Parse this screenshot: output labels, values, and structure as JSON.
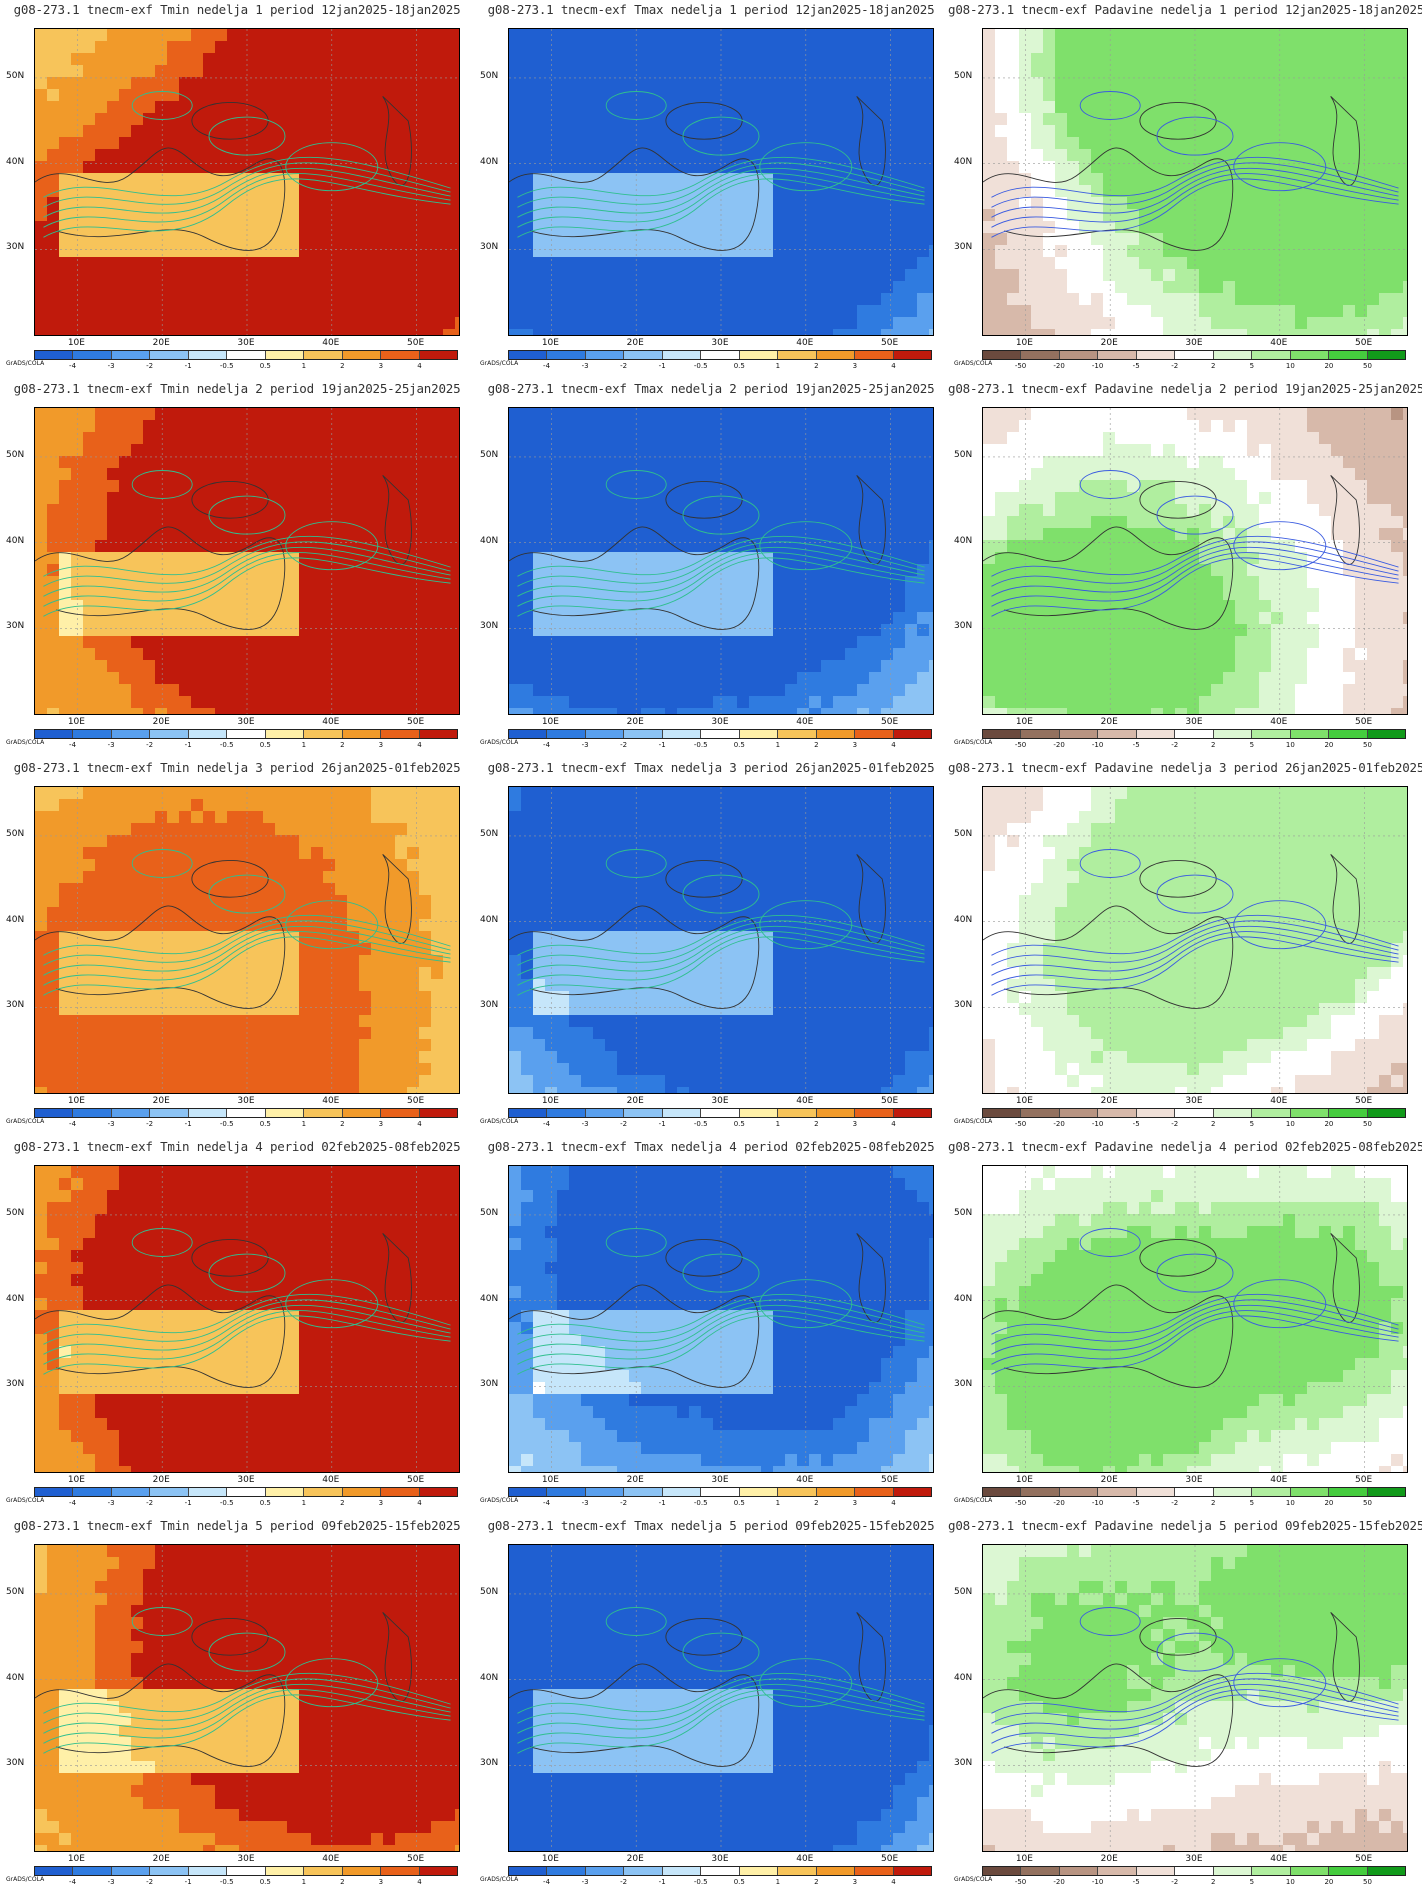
{
  "panels": [
    {
      "title": "g08-273.1 tnecm-exf Tmin nedelja 1 period 12jan2025-18jan2025",
      "type": "tmin",
      "theme": "hot"
    },
    {
      "title": "g08-273.1 tnecm-exf Tmax nedelja 1 period 12jan2025-18jan2025",
      "type": "tmax",
      "theme": "cold"
    },
    {
      "title": "g08-273.1 tnecm-exf Padavine nedelja 1 period 12jan2025-18jan2025",
      "type": "precip",
      "theme": "wet"
    },
    {
      "title": "g08-273.1 tnecm-exf Tmin nedelja 2 period 19jan2025-25jan2025",
      "type": "tmin",
      "theme": "hot"
    },
    {
      "title": "g08-273.1 tnecm-exf Tmax nedelja 2 period 19jan2025-25jan2025",
      "type": "tmax",
      "theme": "cold"
    },
    {
      "title": "g08-273.1 tnecm-exf Padavine nedelja 2 period 19jan2025-25jan2025",
      "type": "precip",
      "theme": "wet"
    },
    {
      "title": "g08-273.1 tnecm-exf Tmin nedelja 3 period 26jan2025-01feb2025",
      "type": "tmin",
      "theme": "warm"
    },
    {
      "title": "g08-273.1 tnecm-exf Tmax nedelja 3 period 26jan2025-01feb2025",
      "type": "tmax",
      "theme": "cold"
    },
    {
      "title": "g08-273.1 tnecm-exf Padavine nedelja 3 period 26jan2025-01feb2025",
      "type": "precip",
      "theme": "mixed"
    },
    {
      "title": "g08-273.1 tnecm-exf Tmin nedelja 4 period 02feb2025-08feb2025",
      "type": "tmin",
      "theme": "hot"
    },
    {
      "title": "g08-273.1 tnecm-exf Tmax nedelja 4 period 02feb2025-08feb2025",
      "type": "tmax",
      "theme": "cold"
    },
    {
      "title": "g08-273.1 tnecm-exf Padavine nedelja 4 period 02feb2025-08feb2025",
      "type": "precip",
      "theme": "wet"
    },
    {
      "title": "g08-273.1 tnecm-exf Tmin nedelja 5 period 09feb2025-15feb2025",
      "type": "tmin",
      "theme": "hot"
    },
    {
      "title": "g08-273.1 tnecm-exf Tmax nedelja 5 period 09feb2025-15feb2025",
      "type": "tmax",
      "theme": "cold"
    },
    {
      "title": "g08-273.1 tnecm-exf Padavine nedelja 5 period 09feb2025-15feb2025",
      "type": "precip",
      "theme": "wet"
    }
  ],
  "axes": {
    "lat_labels": [
      "50N",
      "40N",
      "30N"
    ],
    "lon_labels": [
      "10E",
      "20E",
      "30E",
      "40E",
      "50E"
    ]
  },
  "legend": {
    "grads_label": "GrADS/COLA",
    "temp_ticks": [
      "-4",
      "-3",
      "-2",
      "-1",
      "-0.5",
      "0.5",
      "1",
      "2",
      "3",
      "4"
    ],
    "temp_colors": [
      "#1f5fd1",
      "#2f7be0",
      "#5aa0ee",
      "#8cc3f4",
      "#c6e6fa",
      "#ffffff",
      "#fff0a8",
      "#f7c45a",
      "#f19a2a",
      "#e8611a",
      "#c01a0c"
    ],
    "precip_ticks": [
      "-50",
      "-20",
      "-10",
      "-5",
      "-2",
      "2",
      "5",
      "10",
      "20",
      "50"
    ],
    "precip_colors": [
      "#6b4a3e",
      "#93715f",
      "#b89482",
      "#d7b9aa",
      "#f0e0d8",
      "#ffffff",
      "#dcf7d3",
      "#b0ee9f",
      "#7fe06b",
      "#45cc3e",
      "#119a1a"
    ]
  }
}
